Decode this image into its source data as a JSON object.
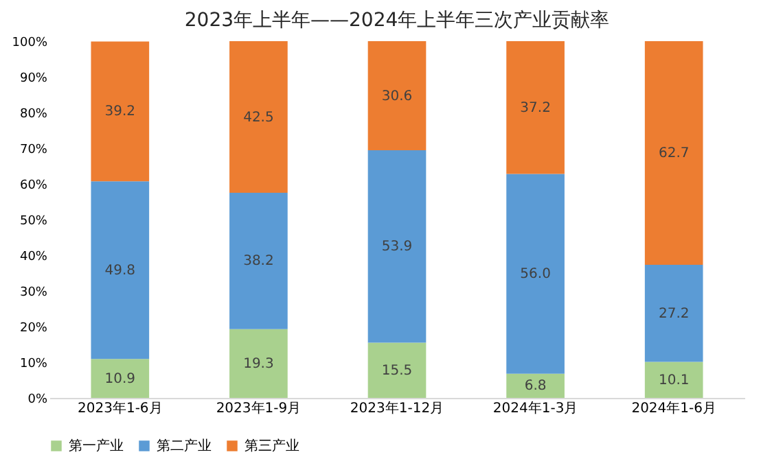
{
  "chart_data": {
    "type": "bar",
    "stacked": true,
    "title": "2023年上半年——2024年上半年三次产业贡献率",
    "categories": [
      "2023年1-6月",
      "2023年1-9月",
      "2023年1-12月",
      "2024年1-3月",
      "2024年1-6月"
    ],
    "series": [
      {
        "name": "第一产业",
        "color": "#a9d18e",
        "values": [
          10.9,
          19.3,
          15.5,
          6.8,
          10.1
        ],
        "value_labels": [
          "10.9",
          "19.3",
          "15.5",
          "6.8",
          "10.1"
        ]
      },
      {
        "name": "第二产业",
        "color": "#5b9bd5",
        "values": [
          49.8,
          38.2,
          53.9,
          56.0,
          27.2
        ],
        "value_labels": [
          "49.8",
          "38.2",
          "53.9",
          "56.0",
          "27.2"
        ]
      },
      {
        "name": "第三产业",
        "color": "#ed7d31",
        "values": [
          39.2,
          42.5,
          30.6,
          37.2,
          62.7
        ],
        "value_labels": [
          "39.2",
          "42.5",
          "30.6",
          "37.2",
          "62.7"
        ]
      }
    ],
    "ylim": [
      0,
      100
    ],
    "yticks": [
      {
        "value": 0,
        "label": "0%"
      },
      {
        "value": 10,
        "label": "10%"
      },
      {
        "value": 20,
        "label": "20%"
      },
      {
        "value": 30,
        "label": "30%"
      },
      {
        "value": 40,
        "label": "40%"
      },
      {
        "value": 50,
        "label": "50%"
      },
      {
        "value": 60,
        "label": "60%"
      },
      {
        "value": 70,
        "label": "70%"
      },
      {
        "value": 80,
        "label": "80%"
      },
      {
        "value": 90,
        "label": "90%"
      },
      {
        "value": 100,
        "label": "100%"
      }
    ],
    "legend": "bottom",
    "grid": false
  }
}
